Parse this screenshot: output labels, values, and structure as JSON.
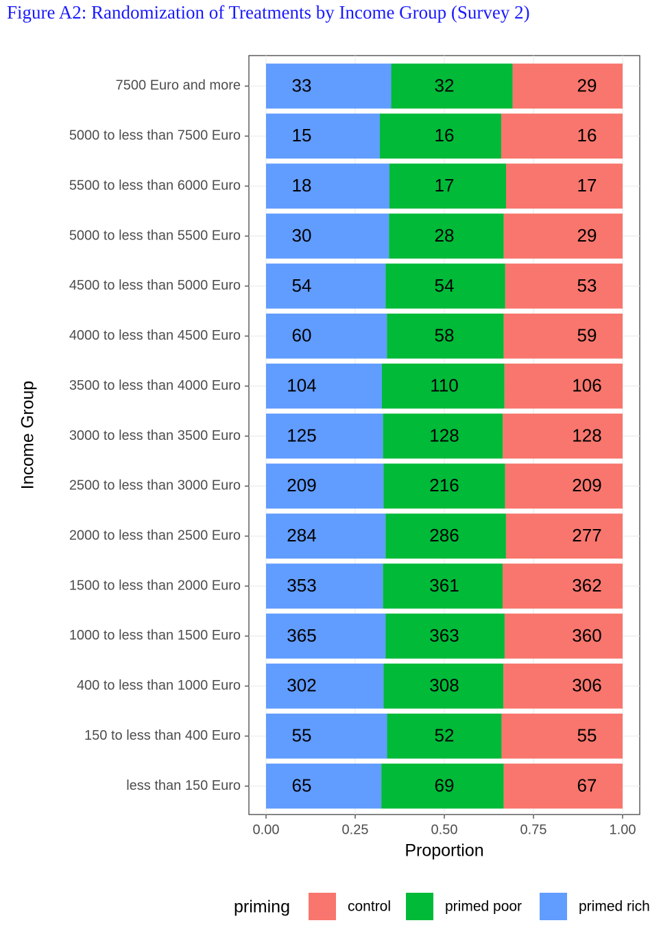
{
  "chart_data": {
    "type": "bar",
    "orientation": "horizontal",
    "position": "fill",
    "title": "Figure A2: Randomization of Treatments by Income Group (Survey 2)",
    "xlabel": "Proportion",
    "ylabel": "Income Group",
    "categories": [
      "7500 Euro and more",
      "5000 to less than 7500 Euro",
      "5500 to less than 6000 Euro",
      "5000 to less than 5500 Euro",
      "4500 to less than 5000 Euro",
      "4000 to less than 4500 Euro",
      "3500 to less than 4000 Euro",
      "3000 to less than 3500 Euro",
      "2500 to less than 3000 Euro",
      "2000 to less than 2500 Euro",
      "1500 to less than 2000 Euro",
      "1000 to less than 1500 Euro",
      "400 to less than 1000 Euro",
      "150 to less than 400 Euro",
      "less than 150 Euro"
    ],
    "legend_title": "priming",
    "legend_position": "bottom",
    "series": [
      {
        "name": "control",
        "color": "#f8766d",
        "values": [
          29,
          16,
          17,
          29,
          53,
          59,
          106,
          128,
          209,
          277,
          362,
          360,
          306,
          55,
          67
        ]
      },
      {
        "name": "primed poor",
        "color": "#00ba38",
        "values": [
          32,
          16,
          17,
          28,
          54,
          58,
          110,
          128,
          216,
          286,
          361,
          363,
          308,
          52,
          69
        ]
      },
      {
        "name": "primed rich",
        "color": "#619cff",
        "values": [
          33,
          15,
          18,
          30,
          54,
          60,
          104,
          125,
          209,
          284,
          353,
          365,
          302,
          55,
          65
        ]
      }
    ],
    "xlim": [
      0,
      1
    ],
    "xticks": [
      {
        "value": 0,
        "label": "0.00"
      },
      {
        "value": 0.25,
        "label": "0.25"
      },
      {
        "value": 0.5,
        "label": "0.50"
      },
      {
        "value": 0.75,
        "label": "0.75"
      },
      {
        "value": 1,
        "label": "1.00"
      }
    ],
    "grid": true
  }
}
